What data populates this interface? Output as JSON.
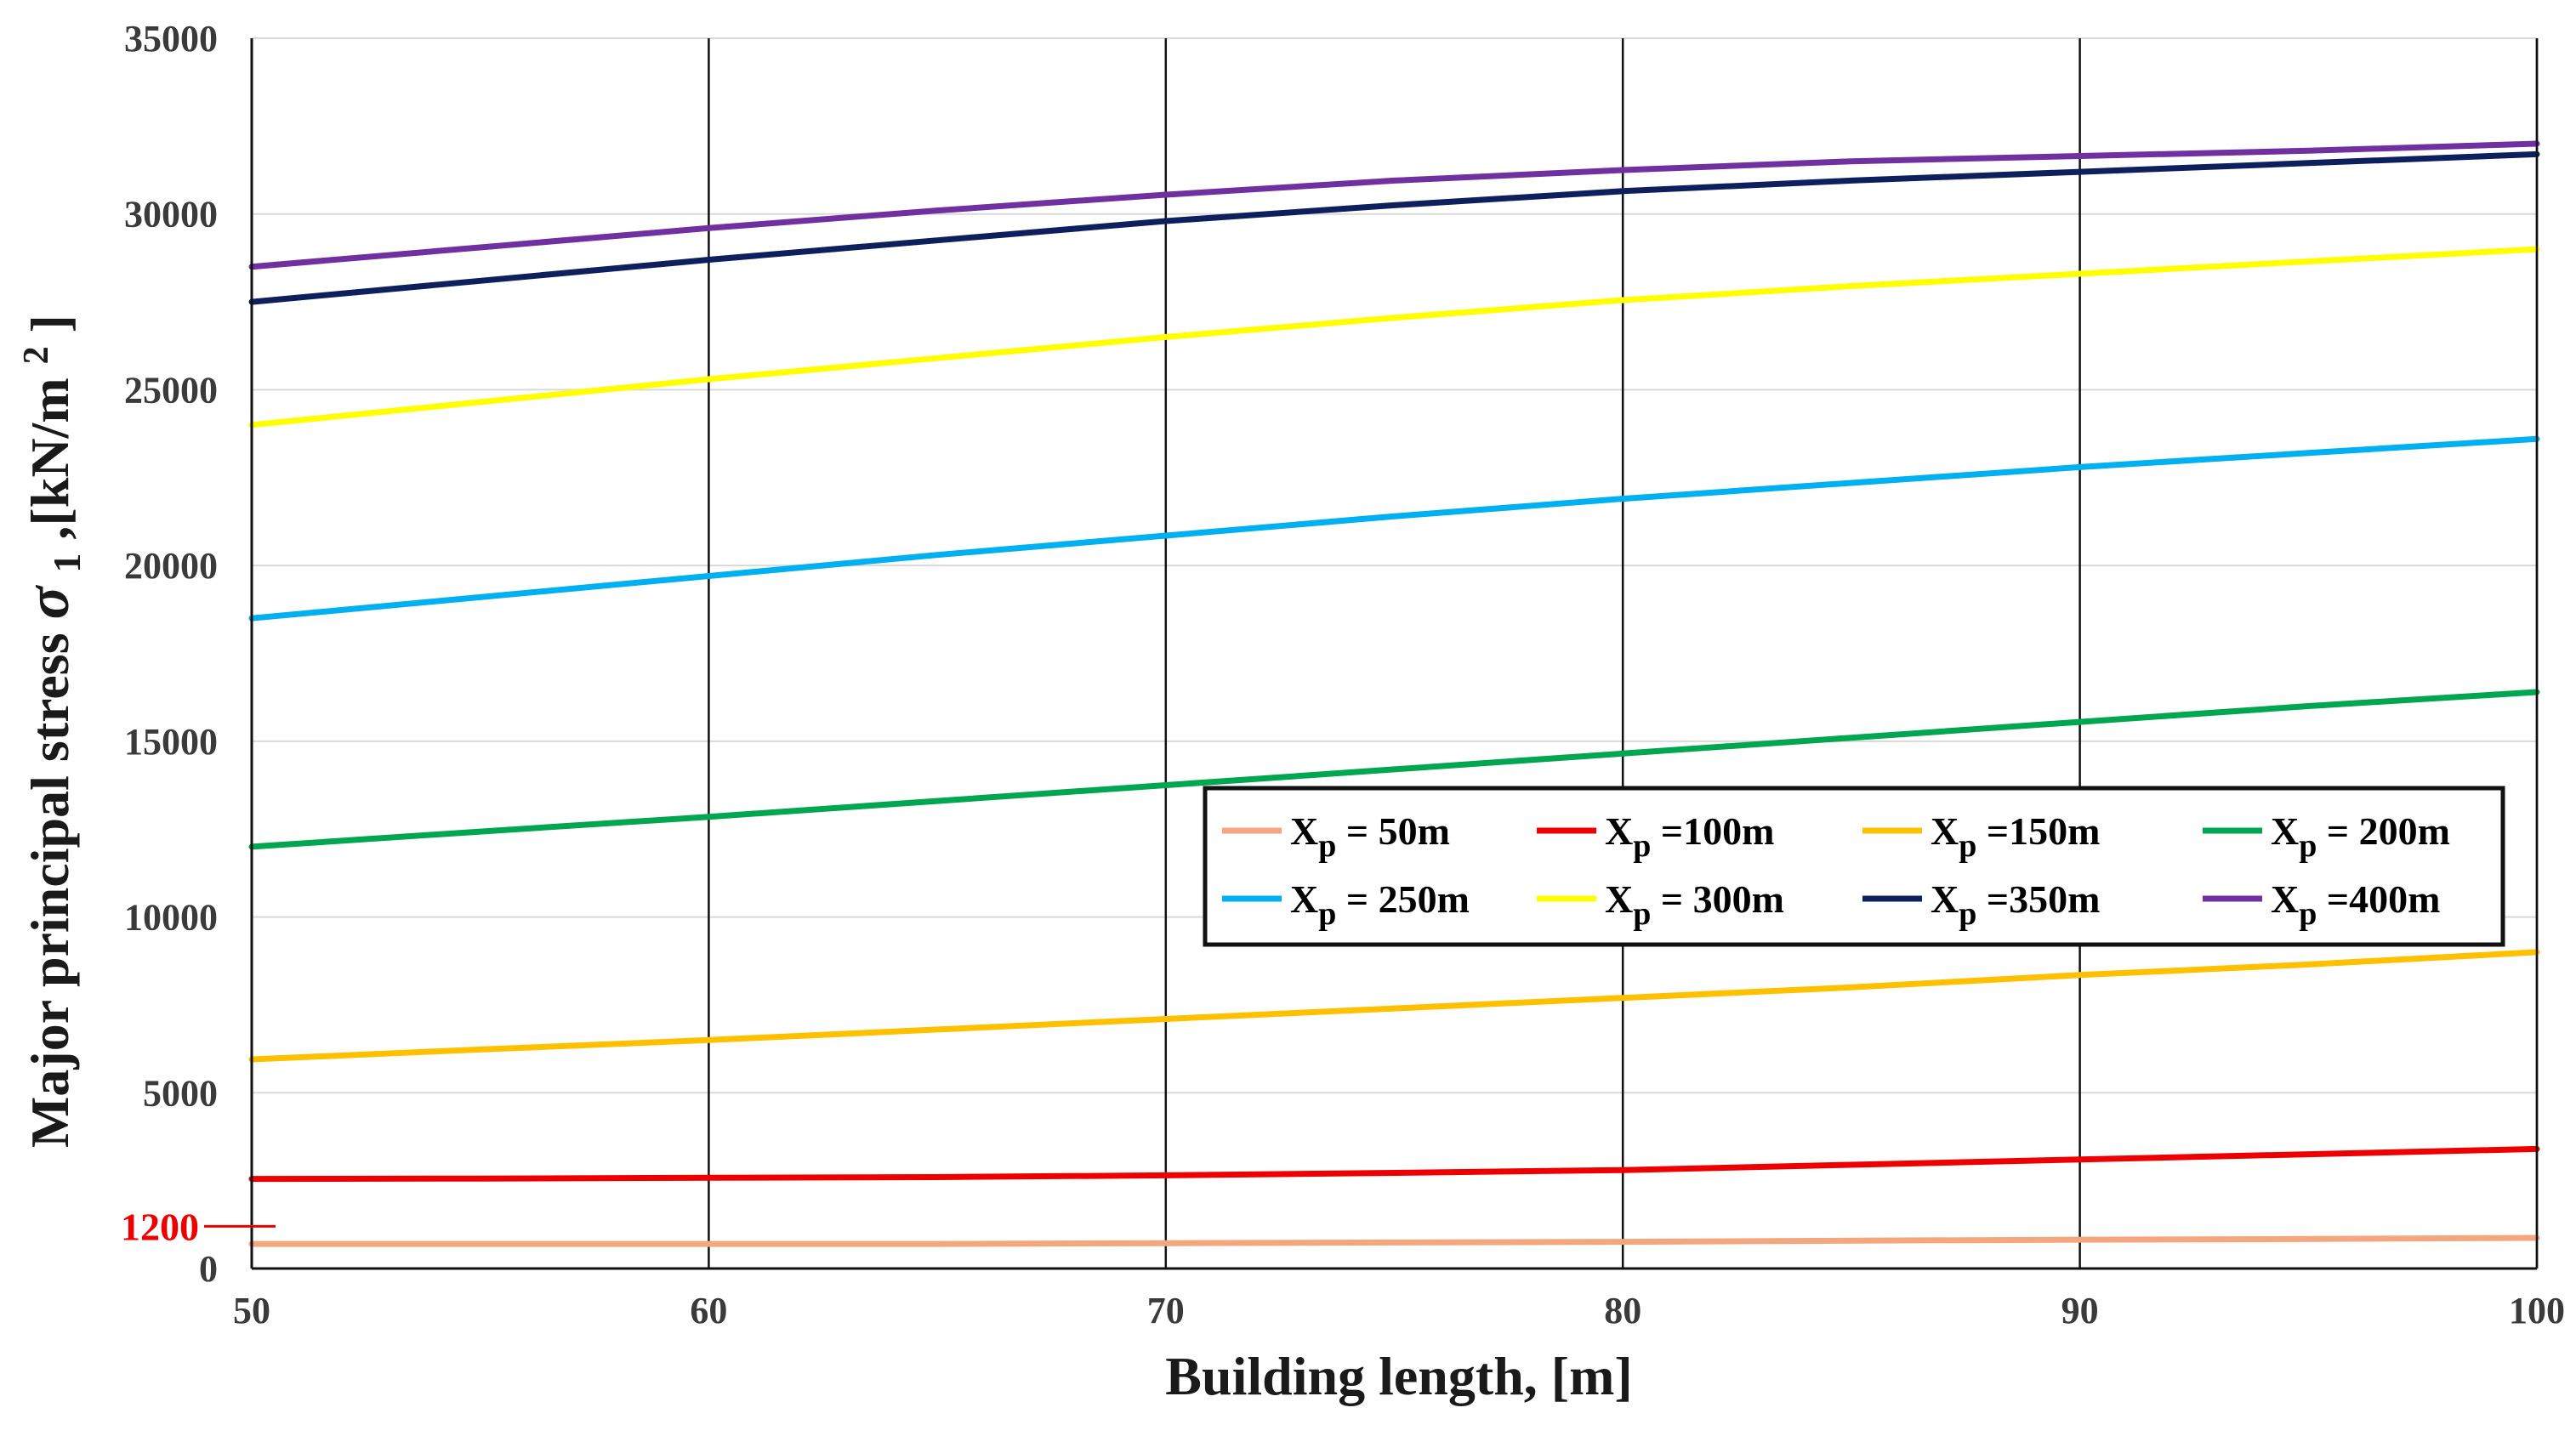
{
  "chart_data": {
    "type": "line",
    "title": "",
    "xlabel": "Building length, [m]",
    "ylabel": {
      "text": "Major principal stress ",
      "symbol": "σ",
      "symbol_sub": "1",
      "unit_prefix": " ,[kN/m",
      "unit_sup": "2",
      "unit_suffix": "]"
    },
    "xlim": [
      50,
      100
    ],
    "ylim": [
      0,
      35000
    ],
    "x_ticks": [
      "50",
      "60",
      "70",
      "80",
      "90",
      "100"
    ],
    "y_ticks": [
      "0",
      "5000",
      "10000",
      "15000",
      "20000",
      "25000",
      "30000",
      "35000"
    ],
    "vertical_grid": true,
    "horizontal_grid": true,
    "legend_position": "center-right",
    "annotation": {
      "text": "1200",
      "y": 1200,
      "color": "#ee0000"
    },
    "x": [
      50,
      55,
      60,
      65,
      70,
      75,
      80,
      85,
      90,
      95,
      100
    ],
    "series": [
      {
        "name_main": "X",
        "name_sub": "p",
        "name_rest": " = 50m",
        "color": "#f4a77e",
        "values": [
          700,
          700,
          700,
          700,
          720,
          740,
          760,
          790,
          820,
          840,
          870
        ]
      },
      {
        "name_main": "X",
        "name_sub": "p",
        "name_rest": " =100m",
        "color": "#ee0000",
        "values": [
          2550,
          2560,
          2580,
          2600,
          2650,
          2720,
          2800,
          2950,
          3100,
          3250,
          3400
        ]
      },
      {
        "name_main": "X",
        "name_sub": "p",
        "name_rest": " =150m",
        "color": "#ffc000",
        "values": [
          5950,
          6230,
          6500,
          6800,
          7100,
          7400,
          7700,
          8000,
          8350,
          8650,
          9000
        ]
      },
      {
        "name_main": "X",
        "name_sub": "p",
        "name_rest": " = 200m",
        "color": "#00a650",
        "values": [
          12000,
          12430,
          12850,
          13300,
          13750,
          14200,
          14650,
          15100,
          15550,
          16000,
          16400
        ]
      },
      {
        "name_main": "X",
        "name_sub": "p",
        "name_rest": " = 250m",
        "color": "#00b0f0",
        "values": [
          18500,
          19100,
          19700,
          20300,
          20850,
          21400,
          21900,
          22350,
          22800,
          23200,
          23600
        ]
      },
      {
        "name_main": "X",
        "name_sub": "p",
        "name_rest": " = 300m",
        "color": "#ffff00",
        "values": [
          24000,
          24650,
          25300,
          25900,
          26500,
          27050,
          27550,
          27950,
          28300,
          28650,
          29000
        ]
      },
      {
        "name_main": "X",
        "name_sub": "p",
        "name_rest": " =350m",
        "color": "#0d1f5c",
        "values": [
          27500,
          28100,
          28700,
          29250,
          29800,
          30250,
          30650,
          30950,
          31200,
          31450,
          31700
        ]
      },
      {
        "name_main": "X",
        "name_sub": "p",
        "name_rest": " =400m",
        "color": "#7030a0",
        "values": [
          28500,
          29050,
          29600,
          30100,
          30550,
          30950,
          31250,
          31500,
          31650,
          31800,
          32000
        ]
      }
    ]
  }
}
